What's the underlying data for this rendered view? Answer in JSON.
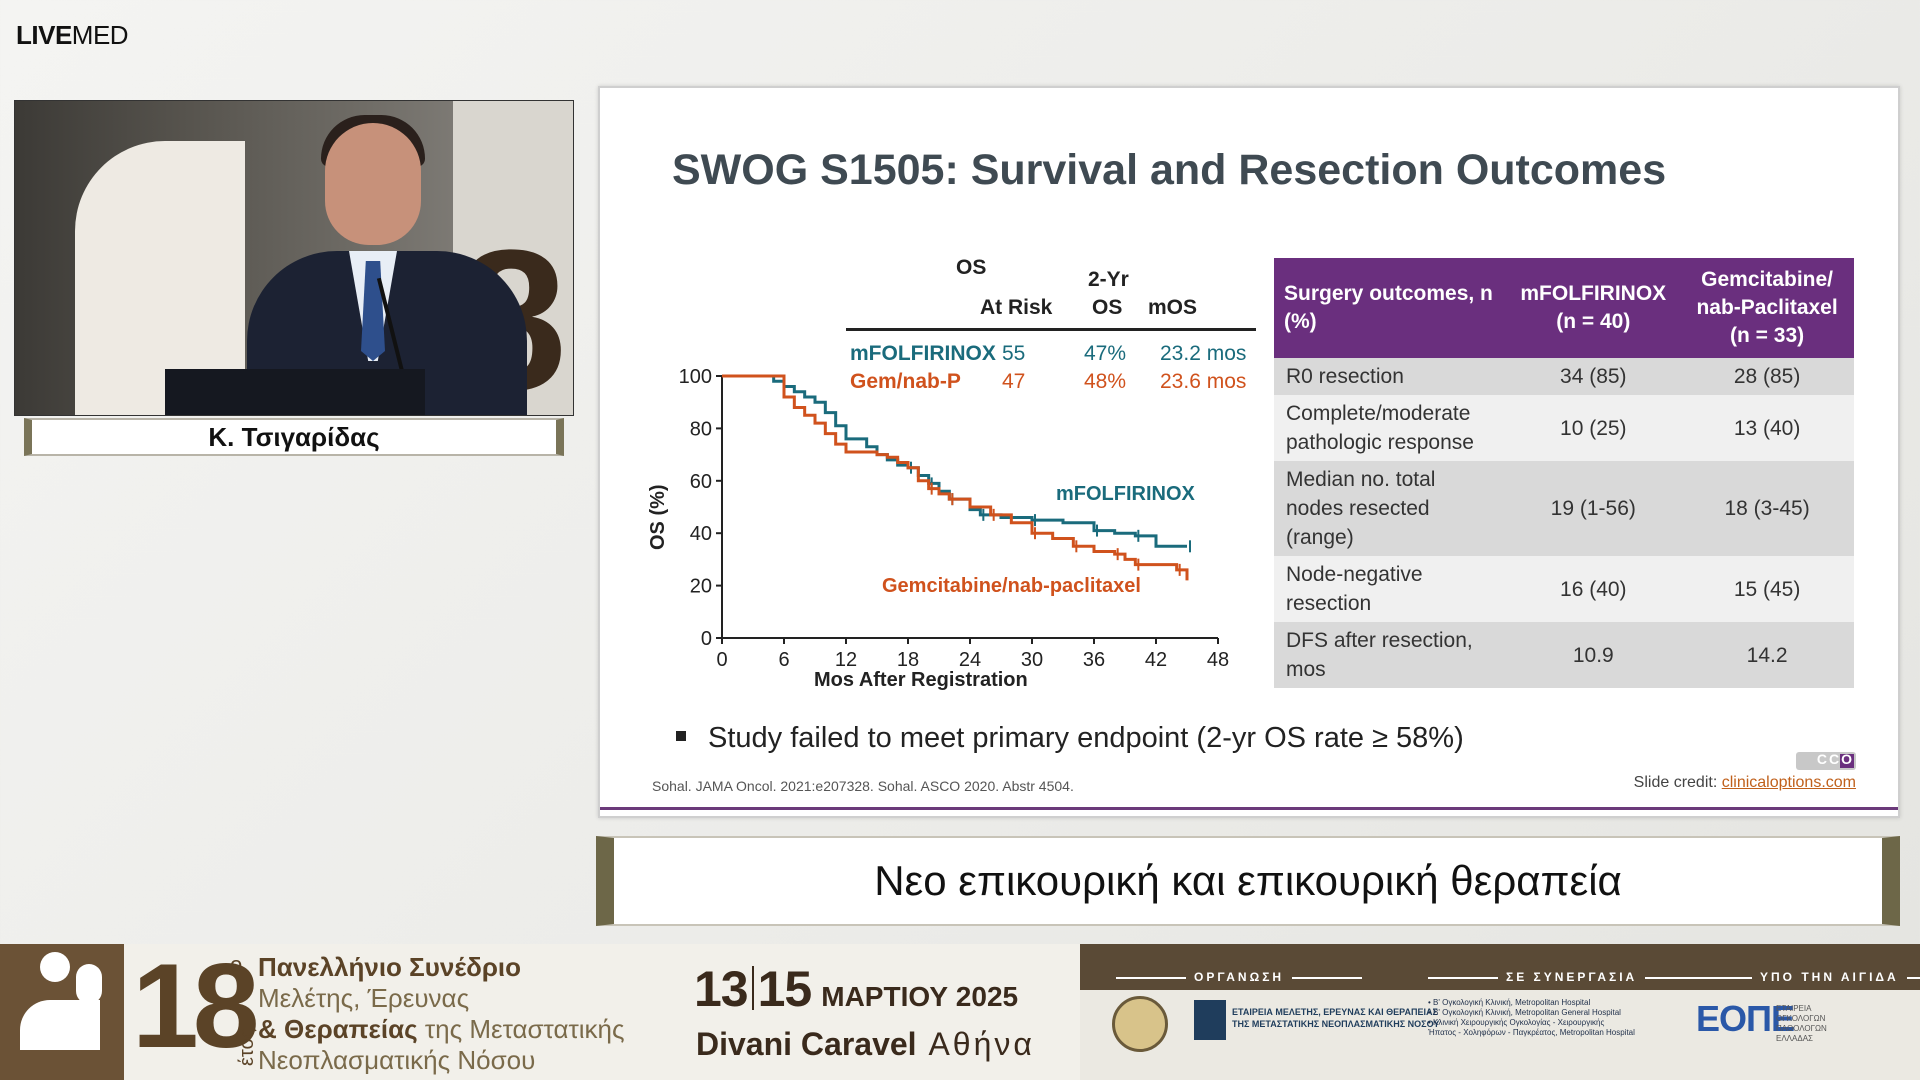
{
  "brand": {
    "bold": "LIVE",
    "rest": "MED"
  },
  "speaker": {
    "name": "Κ. Τσιγαρίδας"
  },
  "slide": {
    "title": "SWOG S1505: Survival and Resection Outcomes",
    "km_header": {
      "os": "OS",
      "at_risk": "At Risk",
      "two_yr": "2-Yr",
      "two_yr_os": "OS",
      "mos": "mOS"
    },
    "km_rows": [
      {
        "arm": "mFOLFIRINOX",
        "at_risk": "55",
        "two_yr": "47%",
        "mos": "23.2 mos"
      },
      {
        "arm": "Gem/nab-P",
        "at_risk": "47",
        "two_yr": "48%",
        "mos": "23.6 mos"
      }
    ],
    "bullet": "Study failed to meet primary endpoint (2-yr OS rate ≥ 58%)",
    "refs": "Sohal. JAMA Oncol. 2021:e207328. Sohal. ASCO 2020. Abstr 4504.",
    "credit_label": "Slide credit: ",
    "credit_link": "clinicaloptions.com",
    "cco": "CCO"
  },
  "surgery_table": {
    "headers": [
      "Surgery outcomes, n (%)",
      "mFOLFIRINOX (n = 40)",
      "Gemcitabine/ nab-Paclitaxel (n = 33)"
    ],
    "rows": [
      [
        "R0 resection",
        "34 (85)",
        "28 (85)"
      ],
      [
        "Complete/moderate pathologic response",
        "10 (25)",
        "13 (40)"
      ],
      [
        "Median no. total nodes resected (range)",
        "19 (1-56)",
        "18 (3-45)"
      ],
      [
        "Node-negative resection",
        "16 (40)",
        "15 (45)"
      ],
      [
        "DFS after resection, mos",
        "10.9",
        "14.2"
      ]
    ]
  },
  "chart_data": {
    "type": "line",
    "title": "",
    "xlabel": "Mos After Registration",
    "ylabel": "OS (%)",
    "xlim": [
      0,
      48
    ],
    "ylim": [
      0,
      100
    ],
    "xticks": [
      0,
      6,
      12,
      18,
      24,
      30,
      36,
      42,
      48
    ],
    "yticks": [
      0,
      20,
      40,
      60,
      80,
      100
    ],
    "series": [
      {
        "name": "mFOLFIRINOX",
        "color": "#1a6b7c",
        "x": [
          0,
          2,
          5,
          6,
          7,
          8,
          9,
          10,
          11,
          12,
          14,
          15,
          16,
          17,
          18,
          19,
          20,
          21,
          22,
          24,
          25,
          27,
          30,
          33,
          36,
          38,
          40,
          42,
          45
        ],
        "y": [
          100,
          100,
          98,
          96,
          94,
          92,
          90,
          86,
          81,
          76,
          73,
          70,
          68,
          66,
          65,
          62,
          59,
          56,
          53,
          49,
          47,
          46,
          45,
          44,
          41,
          40,
          39,
          35,
          35
        ]
      },
      {
        "name": "Gemcitabine/nab-paclitaxel",
        "color": "#d0521d",
        "x": [
          0,
          5,
          6,
          7,
          8,
          9,
          10,
          11,
          12,
          14,
          15,
          16,
          17,
          18,
          19,
          20,
          21,
          22,
          24,
          26,
          28,
          30,
          32,
          34,
          36,
          38,
          39,
          40,
          42,
          44,
          45
        ],
        "y": [
          100,
          100,
          92,
          88,
          85,
          82,
          78,
          74,
          71,
          71,
          70,
          69,
          67,
          65,
          60,
          57,
          55,
          53,
          50,
          47,
          44,
          40,
          38,
          35,
          33,
          32,
          30,
          28,
          28,
          26,
          22
        ]
      }
    ]
  },
  "topic": "Νεο επικουρική και επικουρική θεραπεία",
  "footer": {
    "edition": "18",
    "ordinal": "ο",
    "etos": "έτος",
    "line1": "Πανελλήνιο Συνέδριο",
    "line2": "Μελέτης, Έρευνας",
    "line3a": "& Θεραπείας",
    "line3b": " της Μεταστατικής",
    "line4": "Νεοπλασματικής Νόσου",
    "date_from": "13",
    "date_to": "15",
    "month_year": "ΜΑΡΤΙΟΥ 2025",
    "venue": "Divani Caravel",
    "city": " Αθήνα",
    "sec_org": "ΟΡΓΑΝΩΣΗ",
    "sec_co": "ΣΕ ΣΥΝΕΡΓΑΣΙΑ",
    "sec_aus": "ΥΠΟ ΤΗΝ ΑΙΓΙΔΑ",
    "org_name_1": "ΕΤΑΙΡΕΙΑ ΜΕΛΕΤΗΣ, ΕΡΕΥΝΑΣ ΚΑΙ ΘΕΡΑΠΕΙΑΣ",
    "org_name_2": "ΤΗΣ ΜΕΤΑΣΤΑΤΙΚΗΣ ΝΕΟΠΛΑΣΜΑΤΙΚΗΣ ΝΟΣΟΥ",
    "co_1": "• Β' Ογκολογική Κλινική, Metropolitan Hospital",
    "co_2": "• Β' Ογκολογική Κλινική, Metropolitan General Hospital",
    "co_3": "• Κλινική Χειρουργικής Ογκολογίας - Χειρουργικής",
    "co_4": "  Ήπατος - Χοληφόρων - Παγκρέατος, Metropolitan Hospital",
    "eope": "ΕΟΠΕ",
    "eope_sub_1": "ΕΤΑΙΡΕΙΑ",
    "eope_sub_2": "ΟΓΚΟΛΟΓΩΝ",
    "eope_sub_3": "ΠΑΘΟΛΟΓΩΝ",
    "eope_sub_4": "ΕΛΛΑΔΑΣ"
  }
}
